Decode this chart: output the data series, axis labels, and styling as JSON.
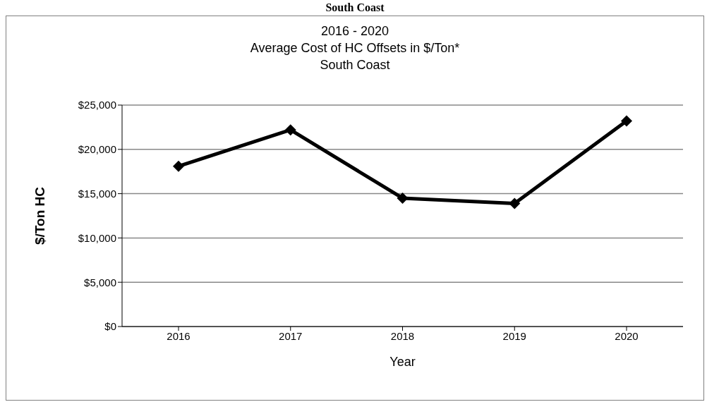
{
  "chart_data": {
    "type": "line",
    "title": "2016 - 2020\nAverage Cost of HC Offsets in $/Ton*\nSouth Coast",
    "annotations": [
      "South Coast"
    ],
    "xlabel": "Year",
    "ylabel": "$/Ton HC",
    "categories": [
      "2016",
      "2017",
      "2018",
      "2019",
      "2020"
    ],
    "series": [
      {
        "color": "#000000",
        "values": [
          18100,
          22200,
          14500,
          13900,
          23200
        ]
      }
    ],
    "ylim": [
      0,
      25000
    ],
    "yticks": [
      {
        "value": 0,
        "label": "$0"
      },
      {
        "value": 5000,
        "label": "$5,000"
      },
      {
        "value": 10000,
        "label": "$10,000"
      },
      {
        "value": 15000,
        "label": "$15,000"
      },
      {
        "value": 20000,
        "label": "$20,000"
      },
      {
        "value": 25000,
        "label": "$25,000"
      }
    ],
    "grid": "y",
    "legend": false,
    "marker": "diamond",
    "line_style": "solid"
  }
}
